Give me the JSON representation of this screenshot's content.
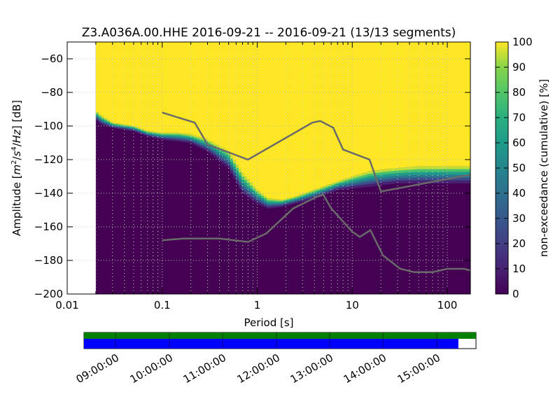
{
  "chart_data": {
    "type": "heatmap",
    "title": "Z3.A036A.00.HHE   2016-09-21 -- 2016-09-21  (13/13 segments)",
    "xlabel": "Period [s]",
    "ylabel": "Amplitude [m²/s⁴/Hz] [dB]",
    "x_scale": "log",
    "xlim": [
      0.01,
      175
    ],
    "ylim": [
      -200,
      -50
    ],
    "x_ticks": [
      0.01,
      0.1,
      1,
      10,
      100
    ],
    "x_tick_labels": [
      "0.01",
      "0.1",
      "1",
      "10",
      "100"
    ],
    "y_ticks": [
      -60,
      -80,
      -100,
      -120,
      -140,
      -160,
      -180,
      -200
    ],
    "y_tick_labels": [
      "−60",
      "−80",
      "−100",
      "−120",
      "−140",
      "−160",
      "−180",
      "−200"
    ],
    "data_period_range": [
      0.02,
      175
    ],
    "colorbar": {
      "label": "non-exceedance (cumulative) [%]",
      "range": [
        0,
        100
      ],
      "ticks": [
        0,
        10,
        20,
        30,
        40,
        50,
        60,
        70,
        80,
        90,
        100
      ],
      "tick_labels": [
        "0",
        "10",
        "20",
        "30",
        "40",
        "50",
        "60",
        "70",
        "80",
        "90",
        "100"
      ],
      "colormap": "viridis"
    },
    "psd_boundary": {
      "description_free": true,
      "x": [
        0.02,
        0.023,
        0.03,
        0.05,
        0.07,
        0.1,
        0.15,
        0.2,
        0.3,
        0.5,
        0.7,
        1.0,
        1.3,
        1.8,
        2.5,
        3.5,
        5,
        7,
        10,
        15,
        20,
        30,
        50,
        100,
        175
      ],
      "lower": [
        -96,
        -99,
        -101,
        -103,
        -106,
        -108,
        -109,
        -110,
        -115,
        -125,
        -140,
        -146,
        -149,
        -148,
        -146,
        -144,
        -141,
        -138,
        -137,
        -136,
        -135,
        -134,
        -134,
        -134,
        -134
      ],
      "upper": [
        -91,
        -94,
        -98,
        -100,
        -103,
        -104,
        -104,
        -105,
        -108,
        -115,
        -128,
        -138,
        -143,
        -144,
        -142,
        -139,
        -136,
        -133,
        -130,
        -127,
        -126,
        -125,
        -124,
        -124,
        -124
      ]
    },
    "series": [
      {
        "name": "",
        "x": [
          0.1,
          0.22,
          0.3,
          0.8,
          3.8,
          4.6,
          6.3,
          8.0,
          15.2,
          20,
          175
        ],
        "y": [
          -92,
          -98,
          -111,
          -120,
          -98,
          -97,
          -101,
          -114,
          -120,
          -139,
          -129
        ],
        "color": "#6a6a6a"
      },
      {
        "name": "",
        "x": [
          0.1,
          0.17,
          0.4,
          0.8,
          1.24,
          2.4,
          4.3,
          4.96,
          6.0,
          10.0,
          12.0,
          15.5,
          21.0,
          32.0,
          45.0,
          70.0,
          100.0,
          150.0,
          175
        ],
        "y": [
          -168,
          -167,
          -167,
          -169,
          -164,
          -149,
          -142,
          -141,
          -149,
          -163,
          -166,
          -162,
          -177,
          -185,
          -187,
          -187,
          -185,
          -185,
          -186
        ],
        "color": "#6a6a6a"
      }
    ],
    "grid": true
  },
  "timeline": {
    "tick_labels": [
      "09:00:00",
      "10:00:00",
      "11:00:00",
      "12:00:00",
      "13:00:00",
      "14:00:00",
      "15:00:00"
    ],
    "green_coverage": [
      0.0,
      1.0
    ],
    "blue_coverage": [
      0.0,
      0.955
    ],
    "colors": {
      "green": "#008000",
      "blue": "#0000ff"
    }
  }
}
